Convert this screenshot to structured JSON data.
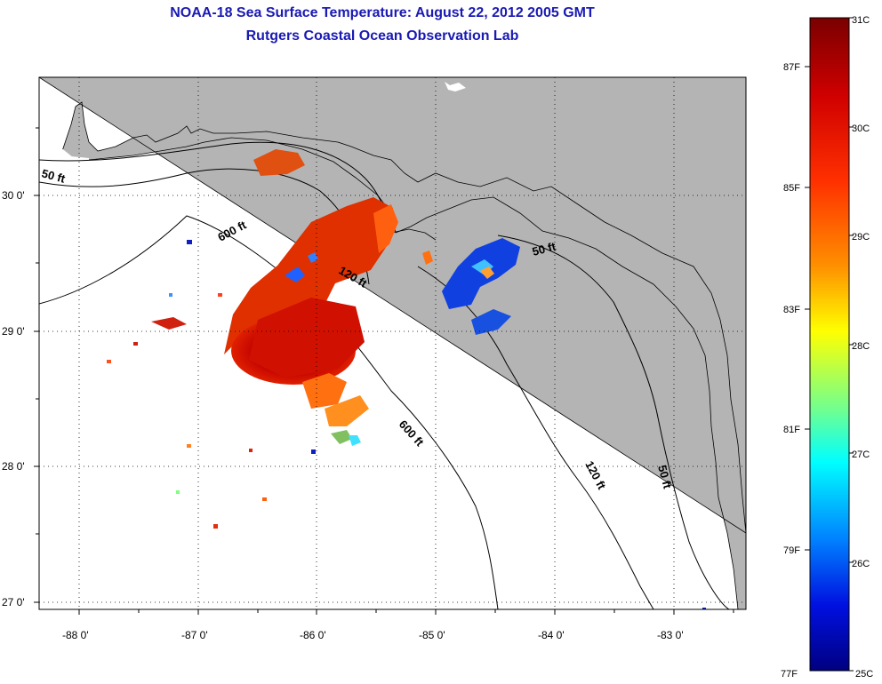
{
  "title": {
    "line1": "NOAA-18 Sea Surface Temperature:  August 22, 2012 2005 GMT",
    "line2": "Rutgers Coastal Ocean Observation Lab",
    "color": "#1a1ab4"
  },
  "map": {
    "land_color": "#b4b4b4",
    "ocean_color": "#ffffff",
    "lon_labels": [
      "-88 0'",
      "-87 0'",
      "-86 0'",
      "-85 0'",
      "-84 0'",
      "-83 0'"
    ],
    "lat_labels": [
      "30 0'",
      "29 0'",
      "28 0'",
      "27 0'"
    ],
    "contour_labels": [
      "50 ft",
      "600 ft",
      "120 ft",
      "50 ft",
      "600 ft",
      "120 ft",
      "50 ft"
    ]
  },
  "colorbar": {
    "celsius_labels": [
      "31C",
      "30C",
      "29C",
      "28C",
      "27C",
      "26C",
      "25C"
    ],
    "fahrenheit_labels": [
      "87F",
      "85F",
      "83F",
      "81F",
      "79F",
      "77F"
    ],
    "colors": [
      "#800000",
      "#ff0000",
      "#ff8000",
      "#ffff00",
      "#80ff80",
      "#00ffff",
      "#0080ff",
      "#0000ff",
      "#000090"
    ]
  }
}
